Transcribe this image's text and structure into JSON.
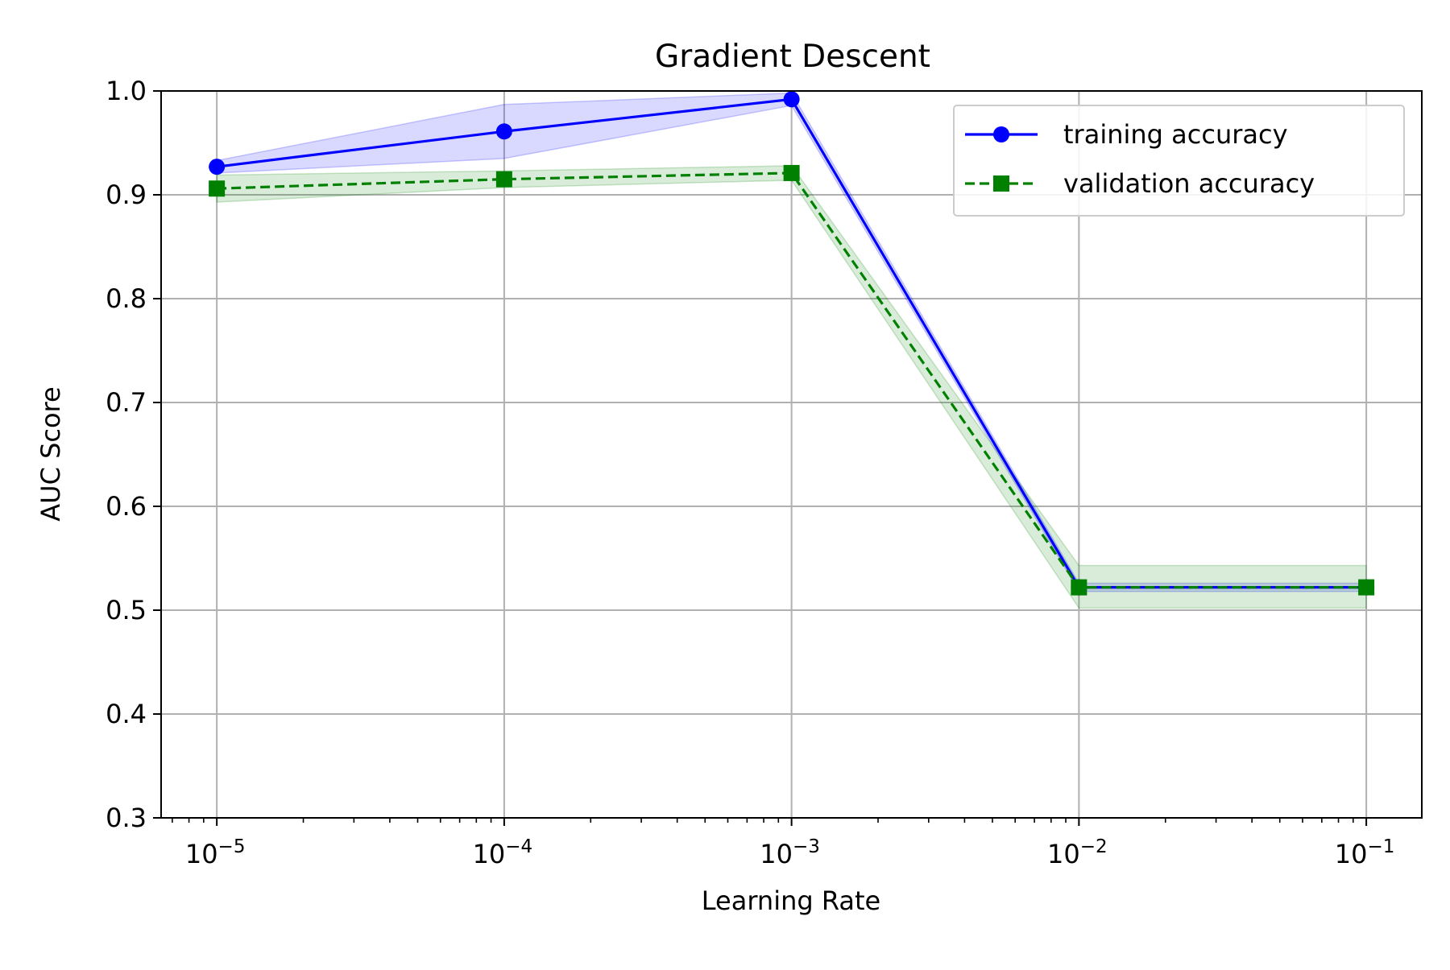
{
  "chart_data": {
    "type": "line",
    "title": "Gradient Descent",
    "xlabel": "Learning Rate",
    "ylabel": "AUC Score",
    "xscale": "log",
    "x": [
      1e-05,
      0.0001,
      0.001,
      0.01,
      0.1
    ],
    "xlim": [
      6.4e-06,
      0.156
    ],
    "ylim": [
      0.3,
      1.0
    ],
    "grid": true,
    "legend_position": "top-right",
    "x_tick_labels": [
      {
        "base": "10",
        "exp": "−5"
      },
      {
        "base": "10",
        "exp": "−4"
      },
      {
        "base": "10",
        "exp": "−3"
      },
      {
        "base": "10",
        "exp": "−2"
      },
      {
        "base": "10",
        "exp": "−1"
      }
    ],
    "y_tick_labels": [
      "0.3",
      "0.4",
      "0.5",
      "0.6",
      "0.7",
      "0.8",
      "0.9",
      "1.0"
    ],
    "series": [
      {
        "name": "training accuracy",
        "values": [
          0.927,
          0.961,
          0.992,
          0.522,
          0.522
        ],
        "band_low": [
          0.921,
          0.935,
          0.986,
          0.518,
          0.518
        ],
        "band_high": [
          0.933,
          0.987,
          0.998,
          0.526,
          0.526
        ],
        "color": "#0000ff",
        "band_color": "#0000ff",
        "line_style": "solid",
        "marker": "circle"
      },
      {
        "name": "validation accuracy",
        "values": [
          0.906,
          0.915,
          0.921,
          0.522,
          0.522
        ],
        "band_low": [
          0.893,
          0.907,
          0.914,
          0.502,
          0.502
        ],
        "band_high": [
          0.919,
          0.923,
          0.928,
          0.543,
          0.543
        ],
        "color": "#008000",
        "band_color": "#008000",
        "line_style": "dashed",
        "marker": "square"
      }
    ]
  }
}
